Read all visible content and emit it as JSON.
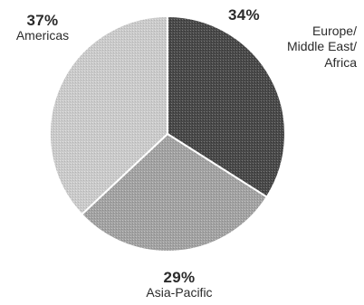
{
  "chart_data": {
    "type": "pie",
    "slices": [
      {
        "name": "Europe/\nMiddle East/\nAfrica",
        "value": 34,
        "label": "34%",
        "color": "#555555"
      },
      {
        "name": "Asia-Pacific",
        "value": 29,
        "label": "29%",
        "color": "#a0a0a0"
      },
      {
        "name": "Americas",
        "value": 37,
        "label": "37%",
        "color": "#c8c8c8"
      }
    ]
  }
}
